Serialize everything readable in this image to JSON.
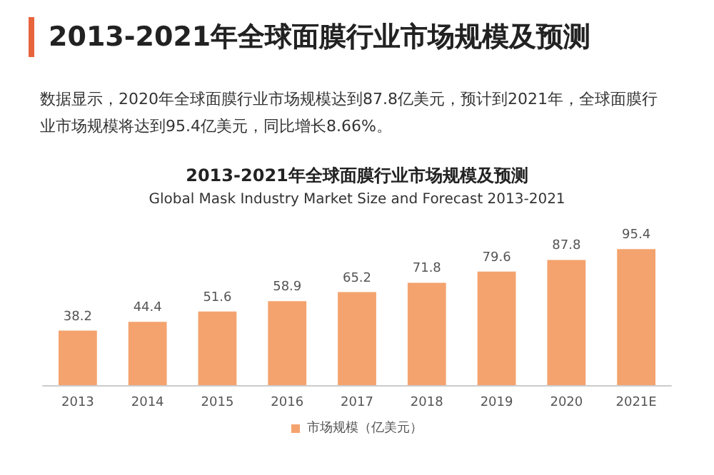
{
  "chart_data": {
    "type": "bar",
    "title": "2013-2021年全球面膜行业市场规模及预测",
    "subtitle": "数据显示，2020年全球面膜行业市场规模达到87.8亿美元，预计到2021年，全球面膜行业市场规模将达到95.4亿美元，同比增长8.66%。",
    "annotations": [
      "2013-2021年全球面膜行业市场规模及预测",
      "Global Mask Industry Market Size and Forecast 2013-2021"
    ],
    "categories": [
      "2013",
      "2014",
      "2015",
      "2016",
      "2017",
      "2018",
      "2019",
      "2020",
      "2021E"
    ],
    "series": [
      {
        "name": "市场规模（亿美元）",
        "color": "#f4a36e",
        "values": [
          38.2,
          44.4,
          51.6,
          58.9,
          65.2,
          71.8,
          79.6,
          87.8,
          95.4
        ]
      }
    ],
    "data_labels": true,
    "legend": "bottom",
    "grid": false
  }
}
